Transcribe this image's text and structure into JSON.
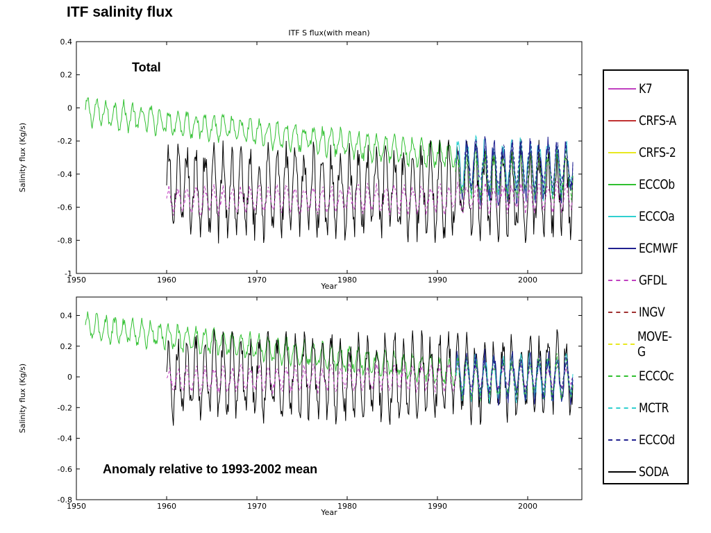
{
  "slide": {
    "title": "ITF salinity flux"
  },
  "chart_data": [
    {
      "type": "line",
      "title": "ITF S flux(with mean)",
      "annotation": "Total",
      "xlabel": "Year",
      "ylabel": "Salinity flux (Kg/s)",
      "xlim": [
        1950,
        2006
      ],
      "ylim": [
        -1,
        0.4
      ],
      "xticks": [
        "1950",
        "1960",
        "1970",
        "1980",
        "1990",
        "2000"
      ],
      "yticks": [
        "0.4",
        "0.2",
        "0",
        "-0.2",
        "-0.4",
        "-0.6",
        "-0.8",
        "-1"
      ],
      "series": [
        {
          "name": "ECCOb",
          "start": 1951.0,
          "end": 1992.0,
          "mean_start": -0.02,
          "mean_end": -0.3,
          "amplitude": 0.07
        },
        {
          "name": "SODA",
          "start": 1960.0,
          "end": 2005.0,
          "mean_start": -0.5,
          "mean_end": -0.5,
          "amplitude": 0.22
        },
        {
          "name": "GFDL",
          "start": 1960.0,
          "end": 2005.0,
          "mean_start": -0.56,
          "mean_end": -0.54,
          "amplitude": 0.07
        },
        {
          "name": "ECCOa",
          "start": 1992.0,
          "end": 2005.0,
          "mean_start": -0.36,
          "mean_end": -0.36,
          "amplitude": 0.14
        },
        {
          "name": "ECMWF",
          "start": 1992.0,
          "end": 2005.0,
          "mean_start": -0.38,
          "mean_end": -0.38,
          "amplitude": 0.15
        },
        {
          "name": "ECCOc",
          "start": 1992.0,
          "end": 2005.0,
          "mean_start": -0.42,
          "mean_end": -0.4,
          "amplitude": 0.12
        },
        {
          "name": "ECCOd",
          "start": 1993.0,
          "end": 2005.0,
          "mean_start": -0.35,
          "mean_end": -0.35,
          "amplitude": 0.12
        }
      ]
    },
    {
      "type": "line",
      "title": "",
      "annotation": "Anomaly relative to 1993-2002 mean",
      "xlabel": "Year",
      "ylabel": "Salinity flux (Kg/s)",
      "xlim": [
        1950,
        2006
      ],
      "ylim": [
        -0.8,
        0.52
      ],
      "xticks": [
        "1950",
        "1960",
        "1970",
        "1980",
        "1990",
        "2000"
      ],
      "yticks": [
        "0.4",
        "0.2",
        "0",
        "-0.2",
        "-0.4",
        "-0.6",
        "-0.8"
      ],
      "series": [
        {
          "name": "ECCOb",
          "start": 1951.0,
          "end": 1992.0,
          "mean_start": 0.33,
          "mean_end": 0.03,
          "amplitude": 0.07
        },
        {
          "name": "SODA",
          "start": 1960.0,
          "end": 2005.0,
          "mean_start": 0.0,
          "mean_end": 0.0,
          "amplitude": 0.22
        },
        {
          "name": "GFDL",
          "start": 1960.0,
          "end": 2005.0,
          "mean_start": -0.02,
          "mean_end": 0.0,
          "amplitude": 0.07
        },
        {
          "name": "ECCOa",
          "start": 1992.0,
          "end": 2005.0,
          "mean_start": 0.0,
          "mean_end": 0.0,
          "amplitude": 0.12
        },
        {
          "name": "ECMWF",
          "start": 1992.0,
          "end": 2005.0,
          "mean_start": 0.0,
          "mean_end": 0.0,
          "amplitude": 0.13
        },
        {
          "name": "ECCOc",
          "start": 1992.0,
          "end": 2005.0,
          "mean_start": -0.02,
          "mean_end": 0.0,
          "amplitude": 0.11
        },
        {
          "name": "ECCOd",
          "start": 1993.0,
          "end": 2005.0,
          "mean_start": 0.0,
          "mean_end": 0.0,
          "amplitude": 0.11
        }
      ]
    }
  ],
  "legend": {
    "items": [
      {
        "label": "K7",
        "color": "#c040c0",
        "style": "solid"
      },
      {
        "label": "CRFS-A",
        "color": "#c03030",
        "style": "solid"
      },
      {
        "label": "CRFS-2",
        "color": "#e8e820",
        "style": "solid"
      },
      {
        "label": "ECCOb",
        "color": "#30c030",
        "style": "solid"
      },
      {
        "label": "ECCOa",
        "color": "#30d0d0",
        "style": "solid"
      },
      {
        "label": "ECMWF",
        "color": "#202090",
        "style": "solid"
      },
      {
        "label": "GFDL",
        "color": "#c040c0",
        "style": "dashed"
      },
      {
        "label": "INGV",
        "color": "#a03030",
        "style": "dashed"
      },
      {
        "label": "MOVE-G",
        "color": "#e8e820",
        "style": "dashed"
      },
      {
        "label": "ECCOc",
        "color": "#30c030",
        "style": "dashed"
      },
      {
        "label": "MCTR",
        "color": "#30d0d0",
        "style": "dashed"
      },
      {
        "label": "ECCOd",
        "color": "#202090",
        "style": "dashed"
      },
      {
        "label": "SODA",
        "color": "#000000",
        "style": "solid"
      }
    ]
  }
}
